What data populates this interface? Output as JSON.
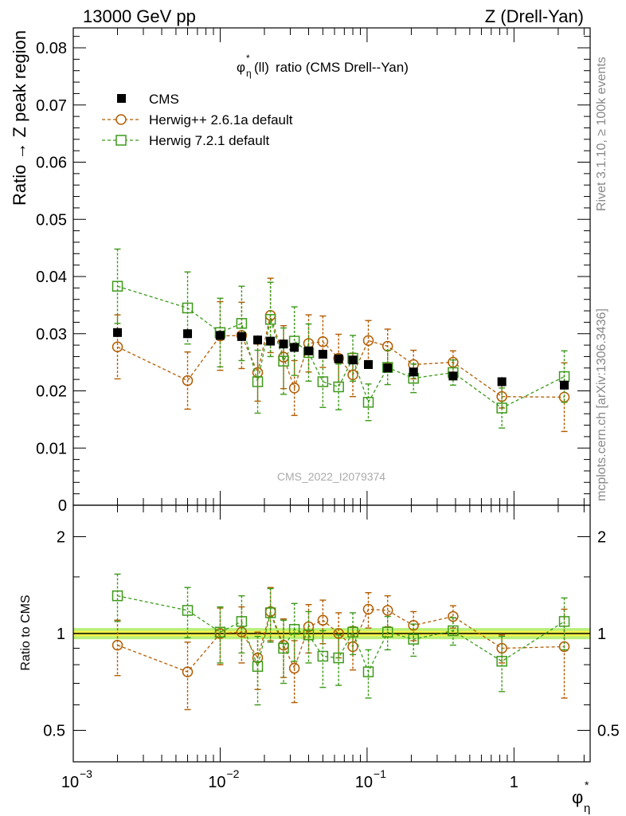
{
  "header": {
    "left": "13000 GeV pp",
    "right": "Z (Drell-Yan)"
  },
  "side_labels": {
    "rivet": "Rivet 3.1.10, ≥ 100k events",
    "source": "mcplots.cern.ch [arXiv:1306.3436]"
  },
  "watermark": "CMS_2022_I2079374",
  "colors": {
    "cms": "#000000",
    "herwig_pp": "#b35c00",
    "herwig7": "#3d9a1a",
    "band_inner": "#f2f24a",
    "band_outer": "#b8f07a"
  },
  "chart_data": [
    {
      "type": "scatter",
      "panel": "main",
      "title": "ratio (CMS Drell--Yan)",
      "title_symbol": "φ",
      "title_sup": "*",
      "title_sub": "η",
      "title_arg": "(ll)",
      "ylabel": "Ratio → Z peak region",
      "x_scale": "log",
      "xlim": [
        0.001,
        3.3
      ],
      "ylim": [
        0,
        0.084
      ],
      "y_ticks": [
        "0",
        "0.01",
        "0.02",
        "0.03",
        "0.04",
        "0.05",
        "0.06",
        "0.07",
        "0.08"
      ],
      "legend_position": "top-left",
      "x": [
        0.002,
        0.006,
        0.01,
        0.014,
        0.018,
        0.022,
        0.027,
        0.032,
        0.04,
        0.05,
        0.064,
        0.08,
        0.102,
        0.138,
        0.207,
        0.385,
        0.827,
        2.2
      ],
      "series": [
        {
          "name": "CMS",
          "marker": "filled-square",
          "values": [
            0.0302,
            0.03,
            0.0297,
            0.0295,
            0.0289,
            0.0287,
            0.0282,
            0.0276,
            0.027,
            0.0264,
            0.0256,
            0.0254,
            0.0246,
            0.024,
            0.0233,
            0.0226,
            0.0216,
            0.021
          ],
          "errors": [
            0.0008,
            0.0008,
            0.0008,
            0.0008,
            0.0008,
            0.0008,
            0.0008,
            0.0008,
            0.0007,
            0.0007,
            0.0007,
            0.0007,
            0.0007,
            0.0007,
            0.0007,
            0.0007,
            0.0008,
            0.0008
          ]
        },
        {
          "name": "Herwig++ 2.6.1a default",
          "marker": "open-circle",
          "values": [
            0.0277,
            0.0218,
            0.0296,
            0.0297,
            0.0232,
            0.0332,
            0.0259,
            0.0205,
            0.0283,
            0.0286,
            0.0257,
            0.0228,
            0.0288,
            0.0278,
            0.0246,
            0.025,
            0.019,
            0.0189
          ],
          "errors": [
            0.0056,
            0.005,
            0.006,
            0.0058,
            0.005,
            0.0065,
            0.0055,
            0.0048,
            0.005,
            0.0045,
            0.0042,
            0.0038,
            0.0035,
            0.003,
            0.0025,
            0.002,
            0.002,
            0.006
          ]
        },
        {
          "name": "Herwig 7.2.1 default",
          "marker": "open-square",
          "values": [
            0.0383,
            0.0345,
            0.0302,
            0.0318,
            0.0216,
            0.0325,
            0.0252,
            0.0287,
            0.0267,
            0.0216,
            0.0207,
            0.0257,
            0.018,
            0.0241,
            0.0222,
            0.0232,
            0.017,
            0.0225
          ],
          "errors": [
            0.0065,
            0.0063,
            0.006,
            0.0065,
            0.0055,
            0.0065,
            0.0058,
            0.006,
            0.005,
            0.0045,
            0.004,
            0.004,
            0.0032,
            0.003,
            0.0025,
            0.0022,
            0.0035,
            0.0045
          ]
        }
      ]
    },
    {
      "type": "scatter",
      "panel": "ratio",
      "ylabel": "Ratio to CMS",
      "xlabel_symbol": "φ",
      "xlabel_sup": "*",
      "xlabel_sub": "η",
      "x_scale": "log",
      "xlim": [
        0.001,
        3.3
      ],
      "y_scale": "log",
      "ylim": [
        0.4,
        2.5
      ],
      "y_ticks": [
        "0.5",
        "1",
        "2"
      ],
      "x_tick_labels": [
        "10",
        "10",
        "10",
        "1"
      ],
      "x_tick_exponents": [
        "−3",
        "−2",
        "−1",
        ""
      ],
      "reference_band": [
        0.96,
        1.04
      ],
      "x": [
        0.002,
        0.006,
        0.01,
        0.014,
        0.018,
        0.022,
        0.027,
        0.032,
        0.04,
        0.05,
        0.064,
        0.08,
        0.102,
        0.138,
        0.207,
        0.385,
        0.827,
        2.2
      ],
      "series": [
        {
          "name": "Herwig++ 2.6.1a default",
          "values": [
            0.92,
            0.76,
            1.0,
            1.01,
            0.84,
            1.17,
            0.92,
            0.78,
            1.05,
            1.1,
            1.0,
            0.91,
            1.19,
            1.18,
            1.06,
            1.13,
            0.9,
            0.91
          ],
          "errors": [
            0.18,
            0.18,
            0.2,
            0.2,
            0.17,
            0.22,
            0.19,
            0.17,
            0.18,
            0.17,
            0.16,
            0.14,
            0.15,
            0.13,
            0.11,
            0.09,
            0.09,
            0.28
          ]
        },
        {
          "name": "Herwig 7.2.1 default",
          "values": [
            1.31,
            1.18,
            1.01,
            1.09,
            0.79,
            1.16,
            0.9,
            1.03,
            0.99,
            0.85,
            0.84,
            1.01,
            0.76,
            1.01,
            0.96,
            1.02,
            0.82,
            1.09
          ],
          "errors": [
            0.22,
            0.21,
            0.2,
            0.22,
            0.19,
            0.22,
            0.2,
            0.21,
            0.18,
            0.17,
            0.15,
            0.15,
            0.13,
            0.12,
            0.11,
            0.1,
            0.16,
            0.2
          ]
        }
      ]
    }
  ]
}
